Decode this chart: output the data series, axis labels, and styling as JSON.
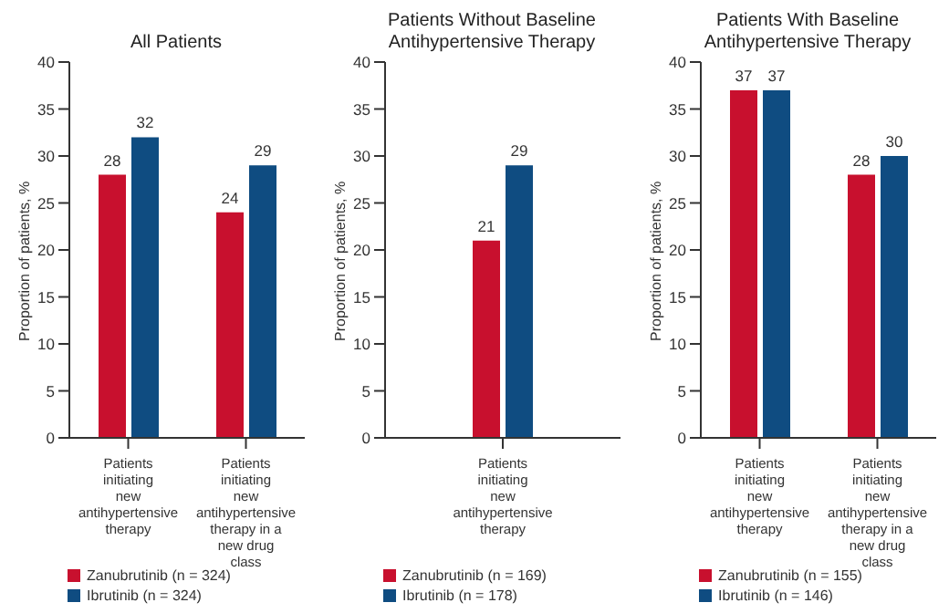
{
  "chart_data": [
    {
      "type": "bar",
      "title": "All Patients",
      "ylabel": "Proportion of patients, %",
      "categories": [
        "Patients initiating new antihypertensive therapy",
        "Patients initiating new antihypertensive therapy in a new drug class"
      ],
      "series": [
        {
          "name": "Zanubrutinib (n = 324)",
          "color": "#c8102e",
          "values": [
            28,
            24
          ]
        },
        {
          "name": "Ibrutinib (n = 324)",
          "color": "#0f4c81",
          "values": [
            32,
            29
          ]
        }
      ],
      "ylim": [
        0,
        40
      ],
      "yticks": [
        0,
        5,
        10,
        15,
        20,
        25,
        30,
        35,
        40
      ],
      "data_labels": true,
      "legend": "bottom"
    },
    {
      "type": "bar",
      "title": "Patients Without Baseline Antihypertensive Therapy",
      "ylabel": "Proportion of patients, %",
      "categories": [
        "Patients initiating new antihypertensive therapy"
      ],
      "series": [
        {
          "name": "Zanubrutinib (n = 169)",
          "color": "#c8102e",
          "values": [
            21
          ]
        },
        {
          "name": "Ibrutinib (n = 178)",
          "color": "#0f4c81",
          "values": [
            29
          ]
        }
      ],
      "ylim": [
        0,
        40
      ],
      "yticks": [
        0,
        5,
        10,
        15,
        20,
        25,
        30,
        35,
        40
      ],
      "data_labels": true,
      "legend": "bottom"
    },
    {
      "type": "bar",
      "title": "Patients With Baseline Antihypertensive Therapy",
      "ylabel": "Proportion of patients, %",
      "categories": [
        "Patients initiating new antihypertensive therapy",
        "Patients initiating new antihypertensive therapy in a new drug class"
      ],
      "series": [
        {
          "name": "Zanubrutinib (n = 155)",
          "color": "#c8102e",
          "values": [
            37,
            28
          ]
        },
        {
          "name": "Ibrutinib (n = 146)",
          "color": "#0f4c81",
          "values": [
            37,
            30
          ]
        }
      ],
      "ylim": [
        0,
        40
      ],
      "yticks": [
        0,
        5,
        10,
        15,
        20,
        25,
        30,
        35,
        40
      ],
      "data_labels": true,
      "legend": "bottom"
    }
  ]
}
